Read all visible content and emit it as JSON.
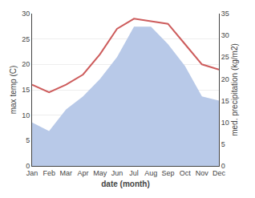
{
  "chart_data": {
    "type": "line",
    "xlabel": "date (month)",
    "ylabel": "max temp (C)",
    "y2label": "med. precipitation (kg/m2)",
    "categories": [
      "Jan",
      "Feb",
      "Mar",
      "Apr",
      "May",
      "Jun",
      "Jul",
      "Aug",
      "Sep",
      "Oct",
      "Nov",
      "Dec"
    ],
    "series": [
      {
        "type": "area",
        "axis": "y2",
        "color": "#b8c9e8",
        "values": [
          10,
          8,
          13,
          16,
          20,
          25,
          32,
          32,
          28,
          23,
          16,
          15
        ]
      },
      {
        "type": "line",
        "color": "#cd5c5c",
        "values": [
          16,
          14.5,
          16,
          18,
          22,
          27,
          29,
          28.5,
          28,
          24,
          20,
          19
        ]
      }
    ],
    "ylim": [
      0,
      30
    ],
    "yticks": [
      0,
      5,
      10,
      15,
      20,
      25,
      30
    ],
    "y2lim": [
      0,
      35
    ],
    "y2ticks": [
      0,
      5,
      10,
      15,
      20,
      25,
      30,
      35
    ],
    "grid": true
  }
}
